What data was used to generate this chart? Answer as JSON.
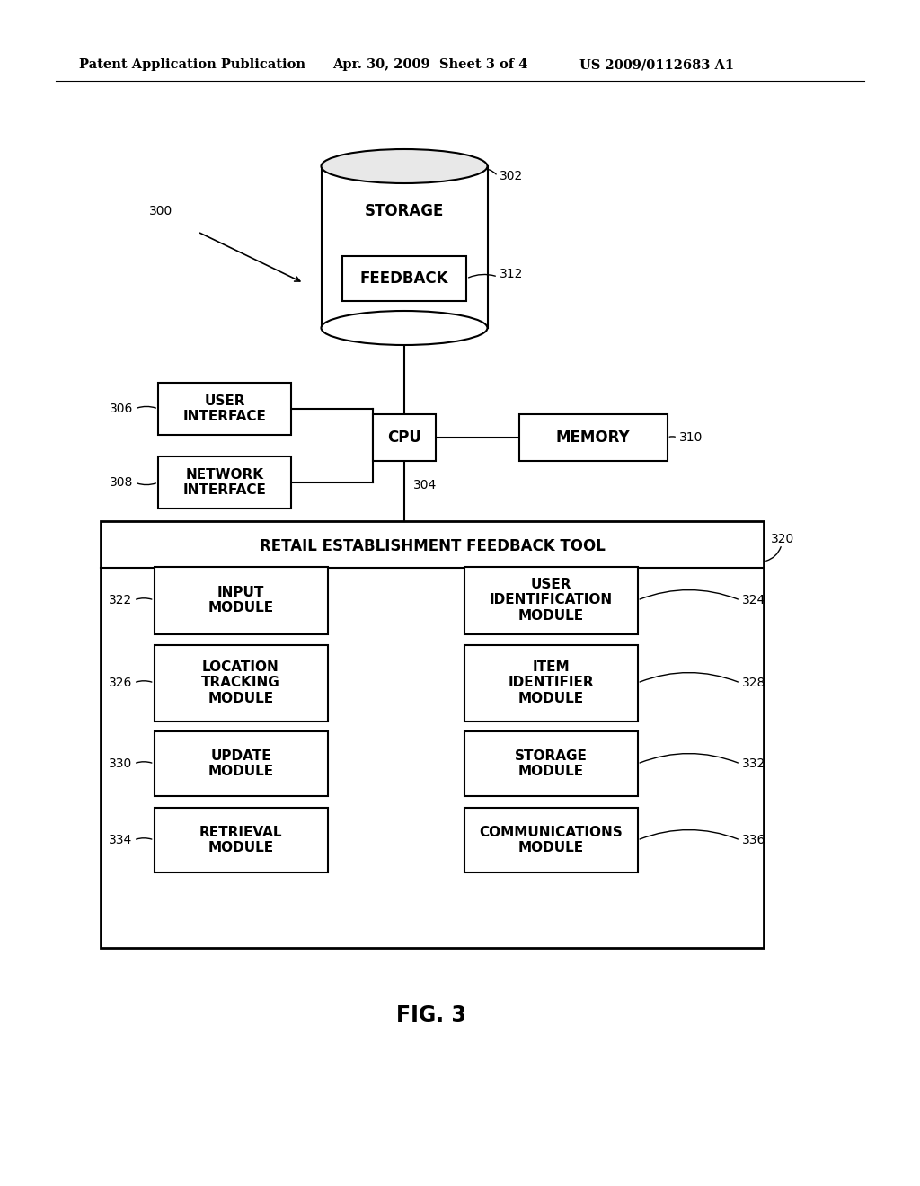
{
  "bg_color": "#ffffff",
  "header_left": "Patent Application Publication",
  "header_mid": "Apr. 30, 2009  Sheet 3 of 4",
  "header_right": "US 2009/0112683 A1",
  "fig_label": "FIG. 3",
  "label_300": "300",
  "label_302": "302",
  "label_304": "304",
  "label_306": "306",
  "label_308": "308",
  "label_310": "310",
  "label_312": "312",
  "label_320": "320",
  "label_322": "322",
  "label_324": "324",
  "label_326": "326",
  "label_328": "328",
  "label_330": "330",
  "label_332": "332",
  "label_334": "334",
  "label_336": "336",
  "storage_text": "STORAGE",
  "feedback_text": "FEEDBACK",
  "cpu_text": "CPU",
  "memory_text": "MEMORY",
  "user_interface_text": "USER\nINTERFACE",
  "network_interface_text": "NETWORK\nINTERFACE",
  "retail_tool_text": "RETAIL ESTABLISHMENT FEEDBACK TOOL",
  "input_module_text": "INPUT\nMODULE",
  "user_id_module_text": "USER\nIDENTIFICATION\nMODULE",
  "location_tracking_text": "LOCATION\nTRACKING\nMODULE",
  "item_identifier_text": "ITEM\nIDENTIFIER\nMODULE",
  "update_module_text": "UPDATE\nMODULE",
  "storage_module_text": "STORAGE\nMODULE",
  "retrieval_module_text": "RETRIEVAL\nMODULE",
  "communications_module_text": "COMMUNICATIONS\nMODULE"
}
